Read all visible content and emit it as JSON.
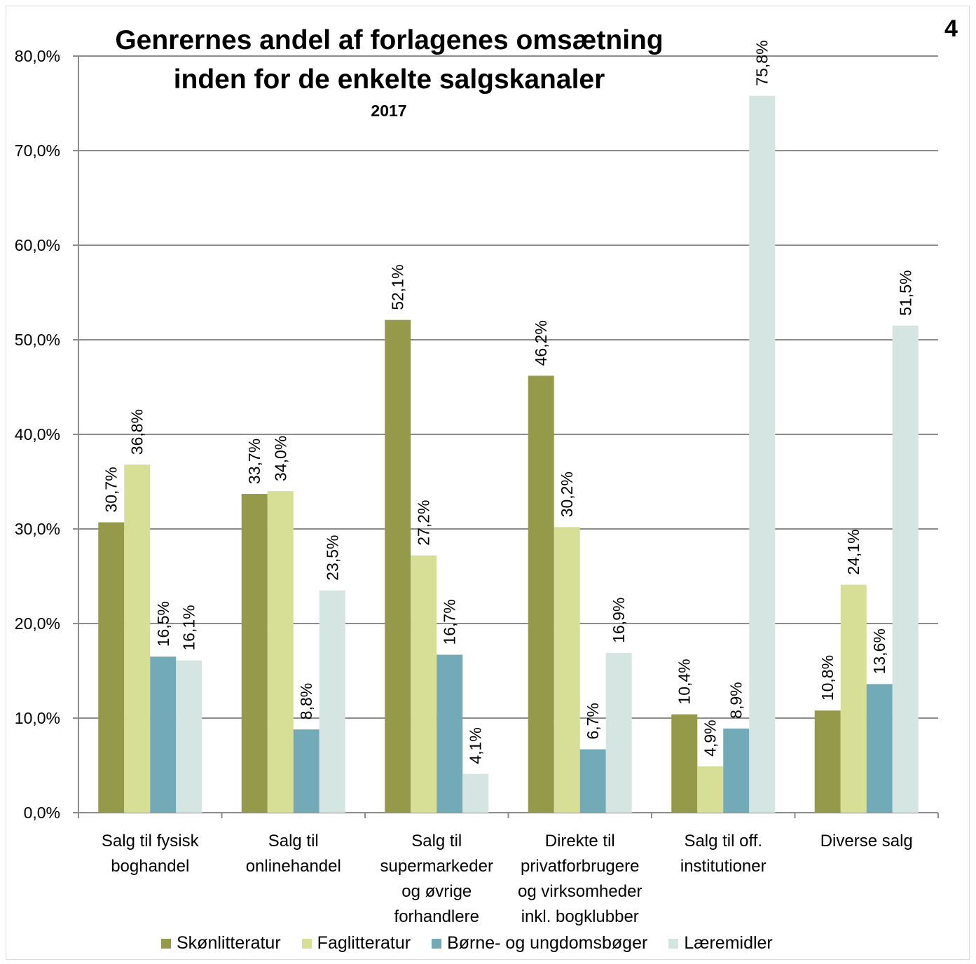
{
  "page_number": "4",
  "chart_data": {
    "type": "bar",
    "title_line1": "Genrernes andel af forlagenes omsætning",
    "title_line2": "inden for de enkelte salgskanaler",
    "subtitle": "2017",
    "ylim": [
      0,
      80
    ],
    "yticks": [
      0,
      10,
      20,
      30,
      40,
      50,
      60,
      70,
      80
    ],
    "ytick_labels": [
      "0,0%",
      "10,0%",
      "20,0%",
      "30,0%",
      "40,0%",
      "50,0%",
      "60,0%",
      "70,0%",
      "80,0%"
    ],
    "grid": true,
    "legend_position": "bottom",
    "categories": [
      [
        "Salg til fysisk",
        "boghandel"
      ],
      [
        "Salg til",
        "onlinehandel"
      ],
      [
        "Salg til",
        "supermarkeder",
        "og øvrige",
        "forhandlere"
      ],
      [
        "Direkte til",
        "privatforbrugere",
        "og virksomheder",
        "inkl. bogklubber"
      ],
      [
        "Salg til off.",
        "institutioner"
      ],
      [
        "Diverse salg"
      ]
    ],
    "series": [
      {
        "name": "Skønlitteratur",
        "color": "#95994a",
        "values": [
          30.7,
          33.7,
          52.1,
          46.2,
          10.4,
          10.8
        ],
        "labels": [
          "30,7%",
          "33,7%",
          "52,1%",
          "46,2%",
          "10,4%",
          "10,8%"
        ]
      },
      {
        "name": "Faglitteratur",
        "color": "#d7de96",
        "values": [
          36.8,
          34.0,
          27.2,
          30.2,
          4.9,
          24.1
        ],
        "labels": [
          "36,8%",
          "34,0%",
          "27,2%",
          "30,2%",
          "4,9%",
          "24,1%"
        ]
      },
      {
        "name": "Børne- og ungdomsbøger",
        "color": "#72aab7",
        "values": [
          16.5,
          8.8,
          16.7,
          6.7,
          8.9,
          13.6
        ],
        "labels": [
          "16,5%",
          "8,8%",
          "16,7%",
          "6,7%",
          "8,9%",
          "13,6%"
        ]
      },
      {
        "name": "Læremidler",
        "color": "#d5e5e1",
        "values": [
          16.1,
          23.5,
          4.1,
          16.9,
          75.8,
          51.5
        ],
        "labels": [
          "16,1%",
          "23,5%",
          "4,1%",
          "16,9%",
          "75,8%",
          "51,5%"
        ]
      }
    ]
  }
}
